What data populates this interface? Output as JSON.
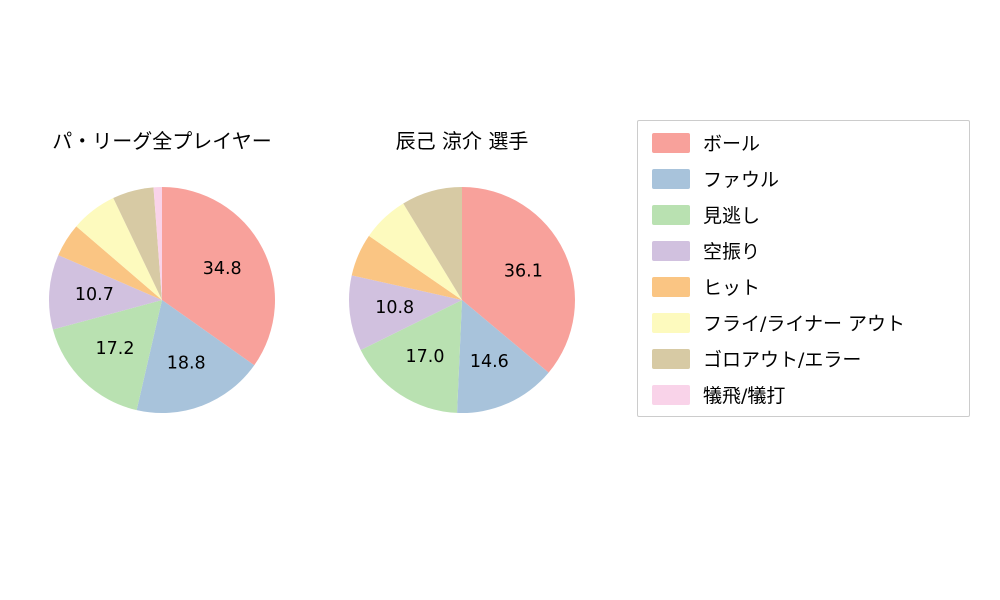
{
  "titles": {
    "left": "パ・リーグ全プレイヤー",
    "right": "辰己 涼介  選手"
  },
  "legend": {
    "items": [
      {
        "label": "ボール",
        "color": "#F8A19B"
      },
      {
        "label": "ファウル",
        "color": "#A8C3DB"
      },
      {
        "label": "見逃し",
        "color": "#B9E1B1"
      },
      {
        "label": "空振り",
        "color": "#D1C1DF"
      },
      {
        "label": "ヒット",
        "color": "#FAC583"
      },
      {
        "label": "フライ/ライナー アウト",
        "color": "#FDFABE"
      },
      {
        "label": "ゴロアウト/エラー",
        "color": "#D7CAA4"
      },
      {
        "label": "犠飛/犠打",
        "color": "#F9D3E9"
      }
    ]
  },
  "chart_data": [
    {
      "type": "pie",
      "title": "パ・リーグ全プレイヤー",
      "labels": [
        "ボール",
        "ファウル",
        "見逃し",
        "空振り",
        "ヒット",
        "フライ/ライナー アウト",
        "ゴロアウト/エラー",
        "犠飛/犠打"
      ],
      "values": [
        34.8,
        18.8,
        17.2,
        10.7,
        4.8,
        6.6,
        5.9,
        1.2
      ],
      "colors": [
        "#F8A19B",
        "#A8C3DB",
        "#B9E1B1",
        "#D1C1DF",
        "#FAC583",
        "#FDFABE",
        "#D7CAA4",
        "#F9D3E9"
      ],
      "shown_value_labels": [
        34.8,
        18.8,
        17.2,
        10.7
      ],
      "label_threshold": 10,
      "start_angle_deg": 0,
      "direction": "clockwise",
      "legend_position": "right"
    },
    {
      "type": "pie",
      "title": "辰己 涼介  選手",
      "labels": [
        "ボール",
        "ファウル",
        "見逃し",
        "空振り",
        "ヒット",
        "フライ/ライナー アウト",
        "ゴロアウト/エラー",
        "犠飛/犠打"
      ],
      "values": [
        36.1,
        14.6,
        17.0,
        10.8,
        6.1,
        6.7,
        8.7,
        0.0
      ],
      "colors": [
        "#F8A19B",
        "#A8C3DB",
        "#B9E1B1",
        "#D1C1DF",
        "#FAC583",
        "#FDFABE",
        "#D7CAA4",
        "#F9D3E9"
      ],
      "shown_value_labels": [
        36.1,
        14.6,
        17.0,
        10.8
      ],
      "label_threshold": 10,
      "start_angle_deg": 0,
      "direction": "clockwise",
      "legend_position": "right"
    }
  ]
}
